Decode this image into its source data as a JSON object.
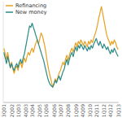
{
  "chart_data": {
    "type": "line",
    "categories": [
      "3Q01",
      null,
      null,
      null,
      null,
      null,
      "2Q02",
      null,
      null,
      null,
      null,
      "1Q03",
      null,
      null,
      null,
      null,
      null,
      "4Q03",
      null,
      null,
      null,
      null,
      "3Q04",
      null,
      null,
      null,
      null,
      null,
      "2Q05",
      null,
      null,
      null,
      null,
      "1Q06",
      null,
      null,
      null,
      null,
      null,
      "4Q06",
      null,
      null,
      null,
      null,
      "3Q07",
      null,
      null,
      null,
      null,
      null,
      "2Q08",
      null,
      null,
      null,
      null,
      null,
      "1Q09",
      null,
      null,
      null,
      null,
      "4Q09",
      null,
      null,
      null,
      null,
      null,
      "3Q10",
      null,
      null,
      null,
      null,
      "2Q11",
      null,
      null,
      null,
      null,
      null,
      "1Q12",
      null,
      null,
      null,
      null,
      "4Q12",
      null,
      null,
      null,
      null,
      null,
      "3Q13"
    ],
    "series": [
      {
        "name": "Refinancing",
        "color": "#E8A020",
        "values": [
          78,
          70,
          62,
          72,
          60,
          50,
          58,
          48,
          42,
          50,
          52,
          46,
          54,
          58,
          50,
          58,
          64,
          58,
          66,
          72,
          68,
          74,
          78,
          72,
          80,
          86,
          90,
          84,
          92,
          100,
          96,
          88,
          80,
          68,
          56,
          46,
          38,
          30,
          22,
          28,
          34,
          30,
          36,
          42,
          46,
          52,
          58,
          54,
          62,
          68,
          60,
          68,
          74,
          78,
          72,
          80,
          86,
          80,
          88,
          84,
          90,
          86,
          82,
          88,
          84,
          80,
          88,
          84,
          90,
          86,
          92,
          98,
          104,
          112,
          122,
          130,
          138,
          128,
          118,
          108,
          98,
          92,
          88,
          82,
          88,
          84,
          90,
          86,
          80,
          76
        ]
      },
      {
        "name": "New money",
        "color": "#2A8A85",
        "values": [
          72,
          64,
          56,
          66,
          58,
          50,
          56,
          50,
          46,
          52,
          56,
          50,
          58,
          62,
          56,
          64,
          70,
          80,
          90,
          100,
          110,
          108,
          114,
          108,
          102,
          96,
          90,
          84,
          78,
          72,
          66,
          60,
          52,
          44,
          36,
          30,
          26,
          24,
          22,
          26,
          32,
          28,
          34,
          38,
          32,
          38,
          44,
          48,
          56,
          62,
          54,
          62,
          68,
          72,
          66,
          74,
          80,
          74,
          82,
          78,
          84,
          80,
          76,
          82,
          78,
          74,
          80,
          76,
          82,
          78,
          84,
          88,
          92,
          86,
          82,
          88,
          82,
          78,
          84,
          80,
          76,
          80,
          74,
          70,
          76,
          72,
          78,
          74,
          70,
          66
        ]
      }
    ],
    "ylim": [
      0,
      145
    ],
    "grid": false,
    "tick_labels": "x",
    "legend": "upper left"
  }
}
